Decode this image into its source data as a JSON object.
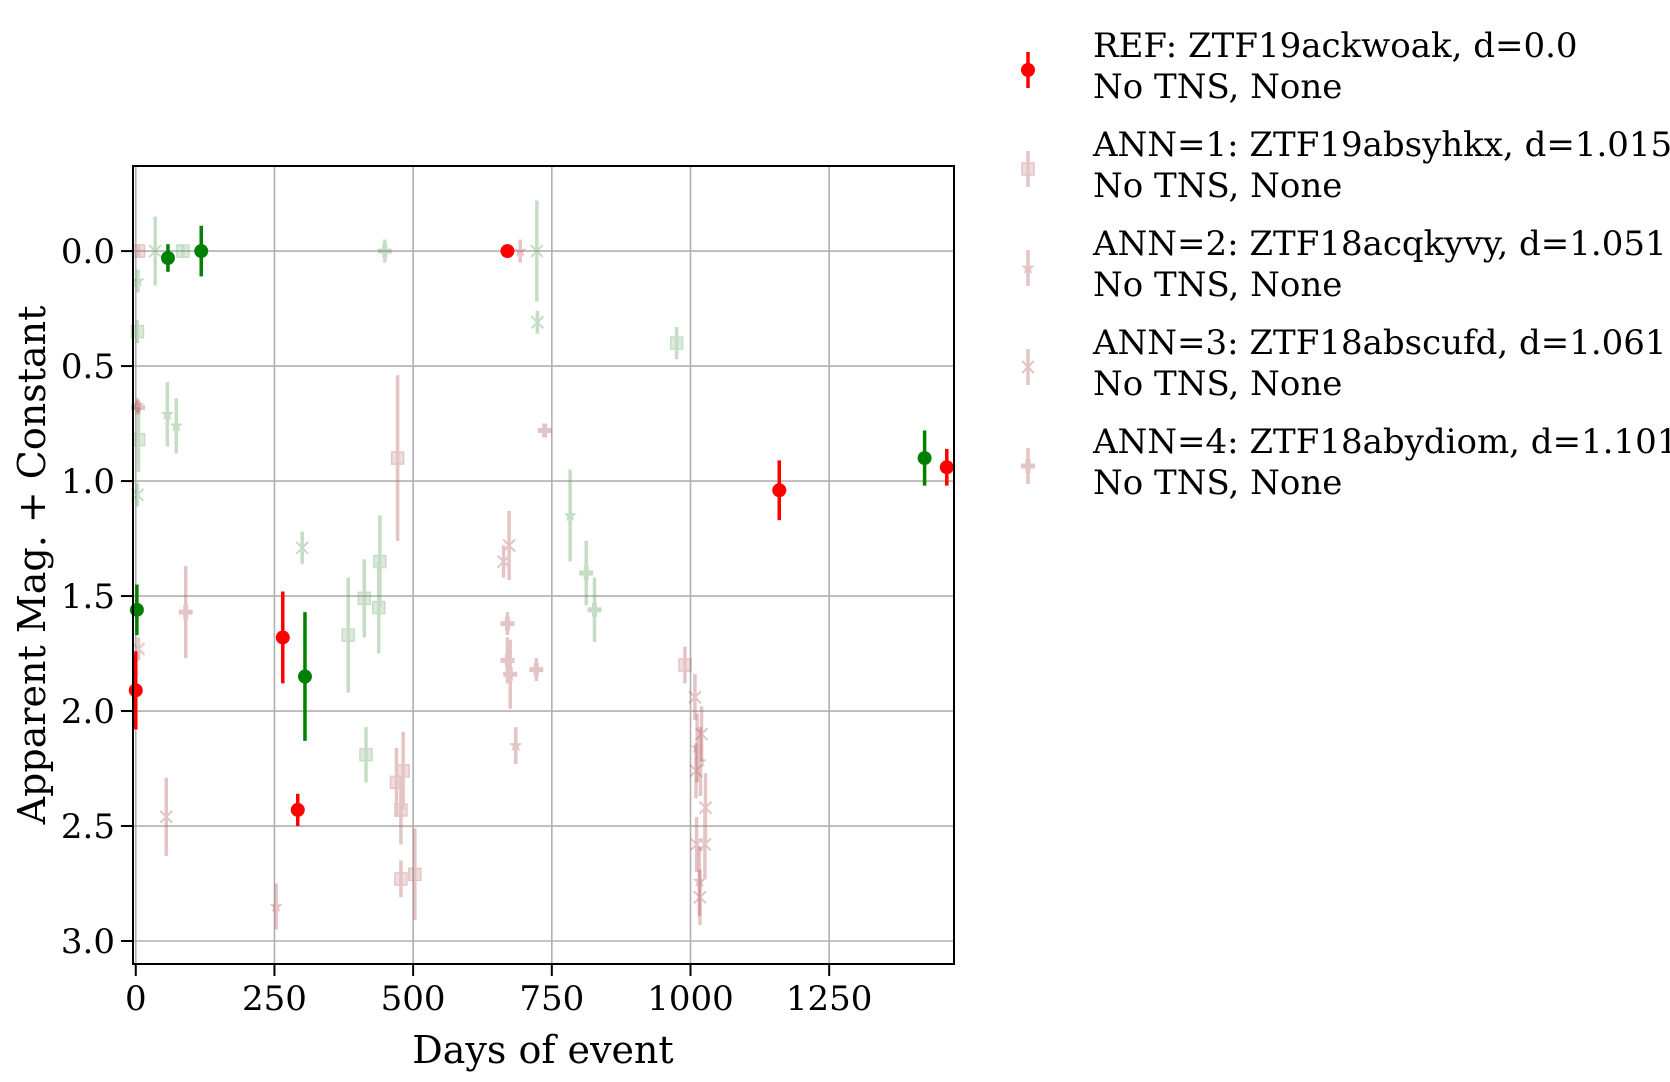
{
  "chart_data": {
    "type": "scatter",
    "xlabel": "Days of event",
    "ylabel": "Apparent Mag. + Constant",
    "xlim": [
      -5,
      1475
    ],
    "ylim": [
      3.1,
      -0.37
    ],
    "y_inverted": true,
    "grid": true,
    "xticks": [
      0,
      250,
      500,
      750,
      1000,
      1250
    ],
    "yticks": [
      0.0,
      0.5,
      1.0,
      1.5,
      2.0,
      2.5,
      3.0
    ],
    "xtick_labels": [
      "0",
      "250",
      "500",
      "750",
      "1000",
      "1250"
    ],
    "ytick_labels": [
      "0.0",
      "0.5",
      "1.0",
      "1.5",
      "2.0",
      "2.5",
      "3.0"
    ],
    "legend_position": "outside-right",
    "colors": {
      "red": "#ff0000",
      "green": "#008000",
      "ann_red": "#b55a5a",
      "ann_green": "#5aa05a"
    },
    "series": [
      {
        "name": "REF: ZTF19ackwoak, d=0.0",
        "name2": "No TNS, None",
        "marker": "circle",
        "alpha": 1.0,
        "points": [
          {
            "x": 0,
            "y": 1.91,
            "err": 0.17,
            "band": "r"
          },
          {
            "x": 265,
            "y": 1.68,
            "err": 0.2,
            "band": "r"
          },
          {
            "x": 292,
            "y": 2.43,
            "err": 0.07,
            "band": "r"
          },
          {
            "x": 670,
            "y": 0.0,
            "err": 0.0,
            "band": "r"
          },
          {
            "x": 1160,
            "y": 1.04,
            "err": 0.13,
            "band": "r"
          },
          {
            "x": 1462,
            "y": 0.94,
            "err": 0.08,
            "band": "r"
          },
          {
            "x": 2,
            "y": 1.56,
            "err": 0.11,
            "band": "g"
          },
          {
            "x": 58,
            "y": 0.03,
            "err": 0.06,
            "band": "g"
          },
          {
            "x": 118,
            "y": 0.0,
            "err": 0.11,
            "band": "g"
          },
          {
            "x": 305,
            "y": 1.85,
            "err": 0.28,
            "band": "g"
          },
          {
            "x": 1422,
            "y": 0.9,
            "err": 0.12,
            "band": "g"
          }
        ]
      },
      {
        "name": "ANN=1: ZTF19absyhkx, d=1.015",
        "name2": "No TNS, None",
        "marker": "square",
        "alpha": 0.35,
        "points": [
          {
            "x": 5,
            "y": 0.0,
            "err": 0.03,
            "band": "r"
          },
          {
            "x": 472,
            "y": 0.9,
            "err": 0.36,
            "band": "r"
          },
          {
            "x": 470,
            "y": 2.31,
            "err": 0.15,
            "band": "r"
          },
          {
            "x": 482,
            "y": 2.26,
            "err": 0.17,
            "band": "r"
          },
          {
            "x": 478,
            "y": 2.43,
            "err": 0.15,
            "band": "r"
          },
          {
            "x": 478,
            "y": 2.73,
            "err": 0.08,
            "band": "r"
          },
          {
            "x": 503,
            "y": 2.71,
            "err": 0.2,
            "band": "r"
          },
          {
            "x": 990,
            "y": 1.8,
            "err": 0.08,
            "band": "r"
          },
          {
            "x": 3,
            "y": 0.35,
            "err": 0.05,
            "band": "g"
          },
          {
            "x": 5,
            "y": 0.82,
            "err": 0.14,
            "band": "g"
          },
          {
            "x": 85,
            "y": 0.0,
            "err": 0.03,
            "band": "g"
          },
          {
            "x": 383,
            "y": 1.67,
            "err": 0.25,
            "band": "g"
          },
          {
            "x": 412,
            "y": 1.51,
            "err": 0.17,
            "band": "g"
          },
          {
            "x": 415,
            "y": 2.19,
            "err": 0.12,
            "band": "g"
          },
          {
            "x": 440,
            "y": 1.35,
            "err": 0.2,
            "band": "g"
          },
          {
            "x": 438,
            "y": 1.55,
            "err": 0.2,
            "band": "g"
          },
          {
            "x": 975,
            "y": 0.4,
            "err": 0.07,
            "band": "g"
          }
        ]
      },
      {
        "name": "ANN=2: ZTF18acqkyvy, d=1.051",
        "name2": "No TNS, None",
        "marker": "star",
        "alpha": 0.35,
        "points": [
          {
            "x": 3,
            "y": 0.67,
            "err": 0.03,
            "band": "r"
          },
          {
            "x": 253,
            "y": 2.85,
            "err": 0.1,
            "band": "r"
          },
          {
            "x": 693,
            "y": 0.0,
            "err": 0.05,
            "band": "r"
          },
          {
            "x": 685,
            "y": 2.15,
            "err": 0.08,
            "band": "r"
          },
          {
            "x": 1012,
            "y": 2.16,
            "err": 0.15,
            "band": "r"
          },
          {
            "x": 1018,
            "y": 2.22,
            "err": 0.15,
            "band": "r"
          },
          {
            "x": 1016,
            "y": 2.74,
            "err": 0.15,
            "band": "r"
          },
          {
            "x": 4,
            "y": 0.13,
            "err": 0.05,
            "band": "g"
          },
          {
            "x": 57,
            "y": 0.71,
            "err": 0.14,
            "band": "g"
          },
          {
            "x": 73,
            "y": 0.76,
            "err": 0.12,
            "band": "g"
          },
          {
            "x": 783,
            "y": 1.15,
            "err": 0.2,
            "band": "g"
          }
        ]
      },
      {
        "name": "ANN=3: ZTF18abscufd, d=1.061",
        "name2": "No TNS, None",
        "marker": "x",
        "alpha": 0.35,
        "points": [
          {
            "x": 5,
            "y": 1.73,
            "err": 0.05,
            "band": "r"
          },
          {
            "x": 55,
            "y": 2.46,
            "err": 0.17,
            "band": "r"
          },
          {
            "x": 663,
            "y": 1.35,
            "err": 0.07,
            "band": "r"
          },
          {
            "x": 673,
            "y": 1.28,
            "err": 0.15,
            "band": "r"
          },
          {
            "x": 1008,
            "y": 1.94,
            "err": 0.1,
            "band": "r"
          },
          {
            "x": 1010,
            "y": 2.26,
            "err": 0.12,
            "band": "r"
          },
          {
            "x": 1020,
            "y": 2.1,
            "err": 0.12,
            "band": "r"
          },
          {
            "x": 1027,
            "y": 2.42,
            "err": 0.15,
            "band": "r"
          },
          {
            "x": 1011,
            "y": 2.58,
            "err": 0.12,
            "band": "r"
          },
          {
            "x": 1026,
            "y": 2.58,
            "err": 0.15,
            "band": "r"
          },
          {
            "x": 1017,
            "y": 2.81,
            "err": 0.12,
            "band": "r"
          },
          {
            "x": 3,
            "y": 1.06,
            "err": 0.05,
            "band": "g"
          },
          {
            "x": 35,
            "y": 0.0,
            "err": 0.15,
            "band": "g"
          },
          {
            "x": 300,
            "y": 1.29,
            "err": 0.07,
            "band": "g"
          },
          {
            "x": 723,
            "y": 0.0,
            "err": 0.22,
            "band": "g"
          },
          {
            "x": 724,
            "y": 0.31,
            "err": 0.05,
            "band": "g"
          }
        ]
      },
      {
        "name": "ANN=4: ZTF18abydiom, d=1.101",
        "name2": "No TNS, None",
        "marker": "plus",
        "alpha": 0.35,
        "points": [
          {
            "x": 4,
            "y": 0.68,
            "err": 0.03,
            "band": "r"
          },
          {
            "x": 90,
            "y": 1.57,
            "err": 0.2,
            "band": "r"
          },
          {
            "x": 670,
            "y": 1.62,
            "err": 0.05,
            "band": "r"
          },
          {
            "x": 670,
            "y": 1.78,
            "err": 0.1,
            "band": "r"
          },
          {
            "x": 675,
            "y": 1.84,
            "err": 0.15,
            "band": "r"
          },
          {
            "x": 722,
            "y": 1.82,
            "err": 0.05,
            "band": "r"
          },
          {
            "x": 737,
            "y": 0.78,
            "err": 0.03,
            "band": "r"
          },
          {
            "x": 449,
            "y": 0.0,
            "err": 0.05,
            "band": "g"
          },
          {
            "x": 812,
            "y": 1.4,
            "err": 0.14,
            "band": "g"
          },
          {
            "x": 827,
            "y": 1.56,
            "err": 0.14,
            "band": "g"
          }
        ]
      }
    ]
  }
}
